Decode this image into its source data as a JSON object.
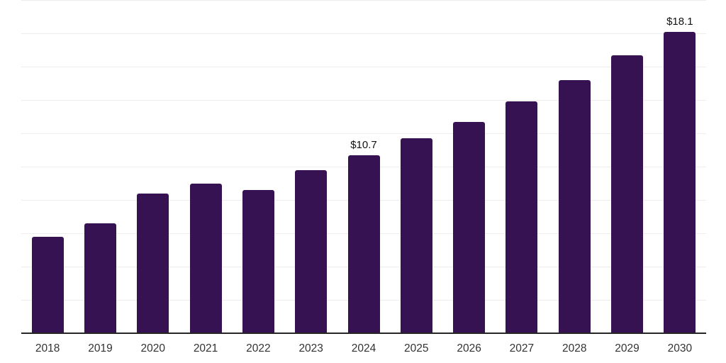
{
  "chart_data": {
    "type": "bar",
    "title": "",
    "xlabel": "",
    "ylabel": "",
    "categories": [
      "2018",
      "2019",
      "2020",
      "2021",
      "2022",
      "2023",
      "2024",
      "2025",
      "2026",
      "2027",
      "2028",
      "2029",
      "2030"
    ],
    "values": [
      5.8,
      6.6,
      8.4,
      9.0,
      8.6,
      9.8,
      10.7,
      11.7,
      12.7,
      13.9,
      15.2,
      16.7,
      18.1
    ],
    "point_labels": [
      "",
      "",
      "",
      "",
      "",
      "",
      "$10.7",
      "",
      "",
      "",
      "",
      "",
      "$18.1"
    ],
    "ylim": [
      0,
      20
    ],
    "grid_interval": 2,
    "grid": "horizontal-only",
    "legend": "none",
    "colors": {
      "bar": "#361253",
      "point_label": "#111111",
      "tick_label": "#333333",
      "gridline": "#ededed",
      "axis_line": "#262626",
      "background": "#ffffff"
    }
  }
}
